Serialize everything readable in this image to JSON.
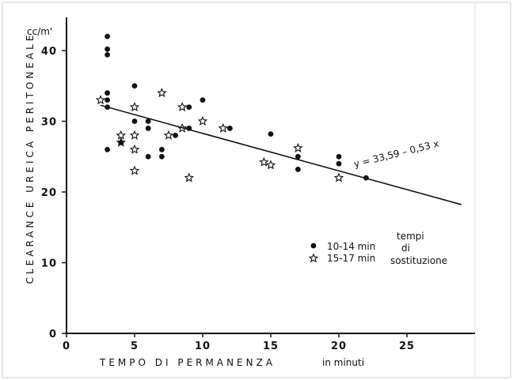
{
  "chart_data": {
    "type": "scatter",
    "ylabel_unit": "cc/m'",
    "ylabel": "CLEARANCE UREICA PERITONEALE",
    "xlabel": "TEMPO DI PERMANENZA",
    "xlabel_unit": "in minuti",
    "xlim": [
      0,
      29
    ],
    "ylim": [
      0,
      45
    ],
    "x_ticks": [
      "0",
      "5",
      "10",
      "15",
      "20",
      "25"
    ],
    "y_ticks": [
      "0",
      "10",
      "20",
      "30",
      "40"
    ],
    "series": [
      {
        "name": "10-14 min",
        "marker": "dot",
        "points": [
          [
            3,
            42
          ],
          [
            3,
            40.2
          ],
          [
            3,
            39.4
          ],
          [
            3,
            34
          ],
          [
            3,
            33
          ],
          [
            3,
            32
          ],
          [
            3,
            26
          ],
          [
            4,
            27
          ],
          [
            5,
            35
          ],
          [
            5,
            30
          ],
          [
            6,
            30
          ],
          [
            6,
            29
          ],
          [
            6,
            25
          ],
          [
            7,
            26
          ],
          [
            7,
            25
          ],
          [
            8,
            28
          ],
          [
            9,
            32
          ],
          [
            9,
            29
          ],
          [
            10,
            33
          ],
          [
            12,
            29
          ],
          [
            15,
            28.2
          ],
          [
            17,
            25
          ],
          [
            17,
            23.2
          ],
          [
            20,
            25
          ],
          [
            20,
            24
          ],
          [
            22,
            22
          ]
        ]
      },
      {
        "name": "15-17 min",
        "marker": "star",
        "points": [
          [
            2.5,
            33
          ],
          [
            4,
            28
          ],
          [
            4,
            27
          ],
          [
            5,
            32
          ],
          [
            5,
            28
          ],
          [
            5,
            26
          ],
          [
            5,
            23
          ],
          [
            7,
            34
          ],
          [
            7.5,
            28
          ],
          [
            8.5,
            32
          ],
          [
            8.5,
            29
          ],
          [
            9,
            22
          ],
          [
            10,
            30
          ],
          [
            11.5,
            29
          ],
          [
            14.5,
            24.2
          ],
          [
            15,
            23.8
          ],
          [
            17,
            26.2
          ],
          [
            20,
            22
          ]
        ]
      }
    ],
    "regression": {
      "intercept": 33.59,
      "slope": -0.53,
      "x_range": [
        2.5,
        29
      ]
    },
    "equation_label": "y = 33,59 – 0,53 x",
    "legend": {
      "entries": [
        {
          "marker": "dot",
          "label": "10-14 min"
        },
        {
          "marker": "star",
          "label": "15-17 min"
        }
      ],
      "group_label": [
        "tempi",
        "di",
        "sostituzione"
      ],
      "placement": "right"
    },
    "grid": false
  }
}
